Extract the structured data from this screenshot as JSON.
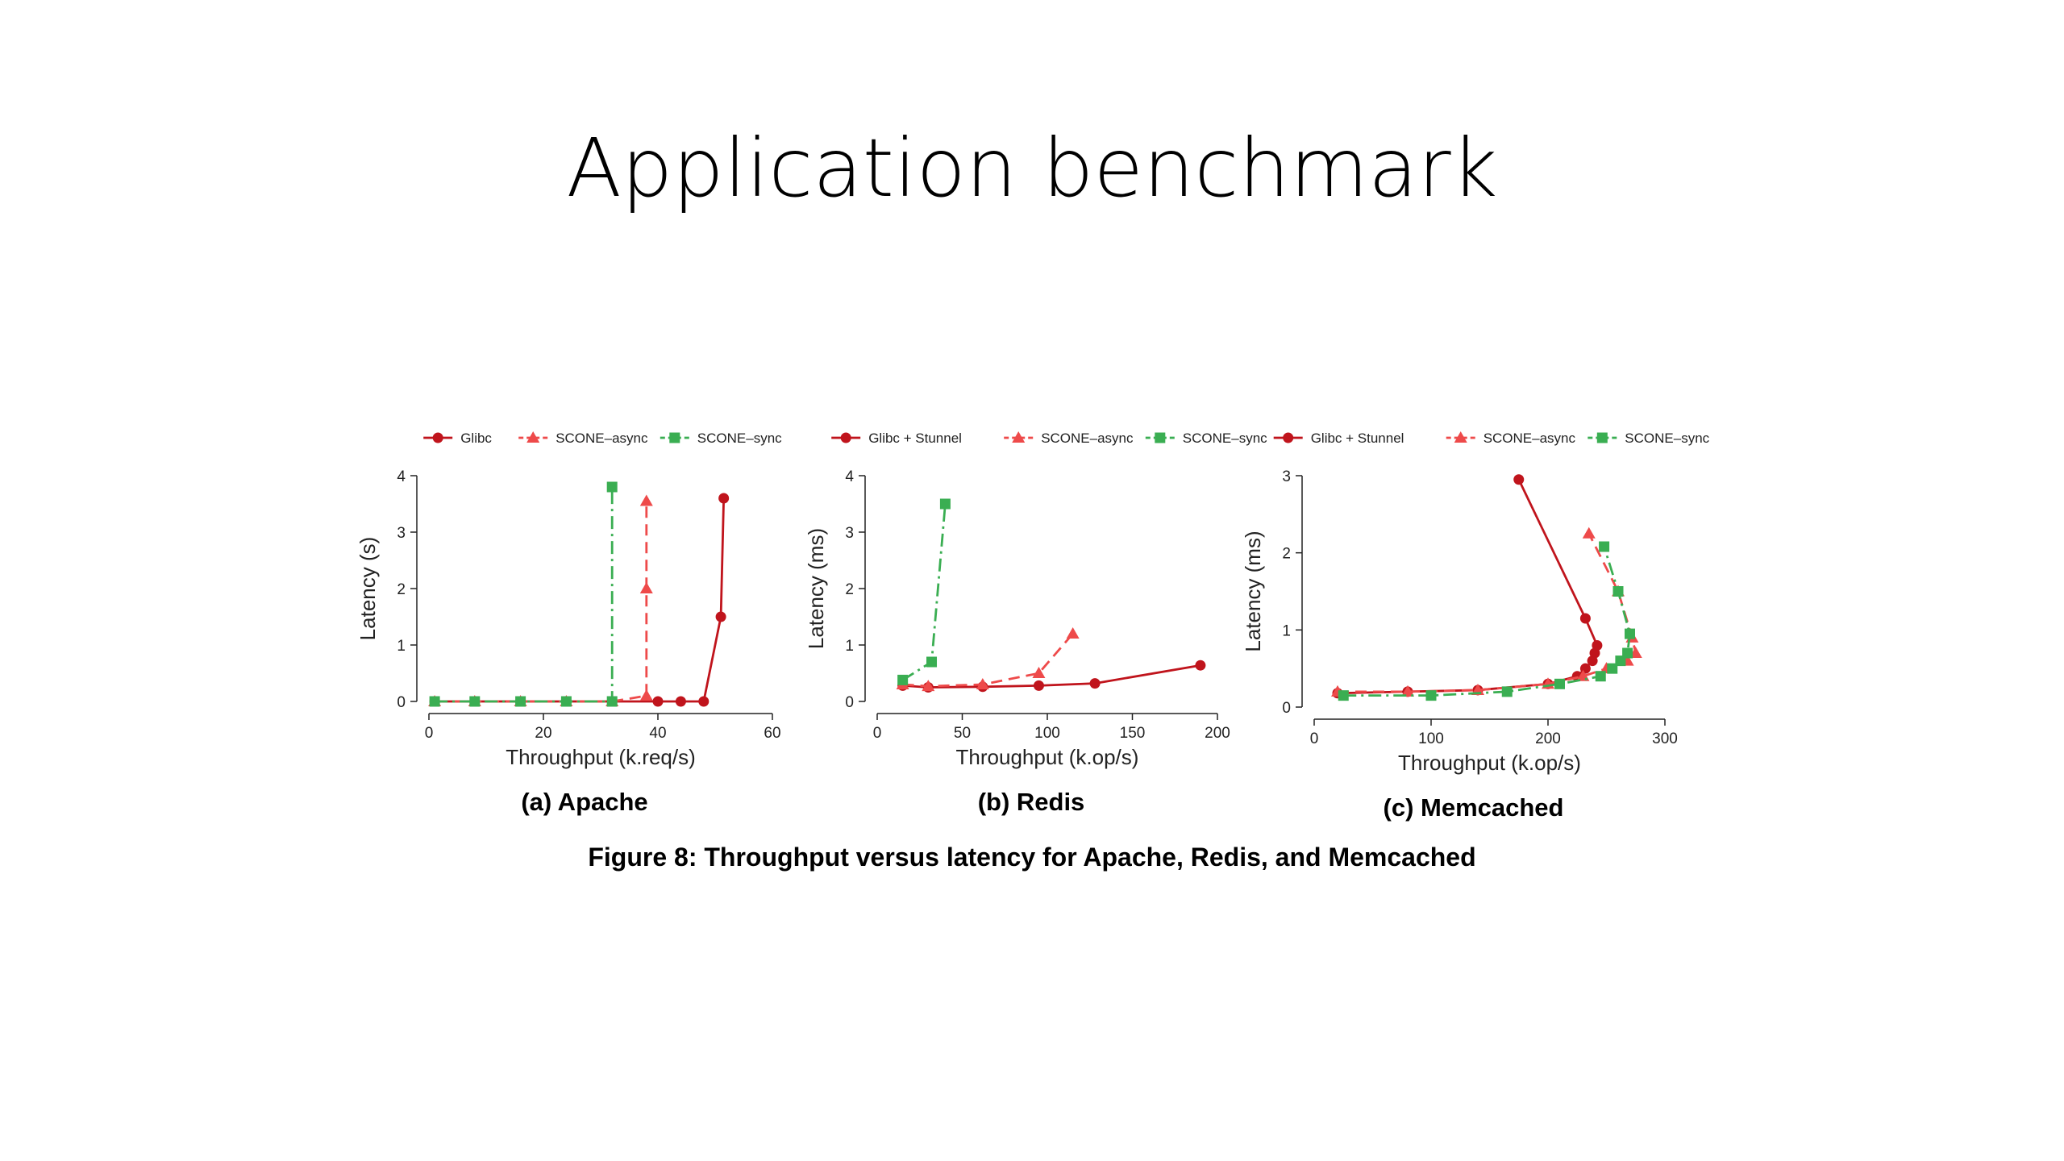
{
  "slide": {
    "title": "Application benchmark"
  },
  "caption": "Figure 8: Throughput versus latency for Apache, Redis, and Memcached",
  "colors": {
    "glibc": "#c0141c",
    "async": "#ee4a4a",
    "sync": "#3aae52"
  },
  "chart_data": [
    {
      "type": "line",
      "subtitle": "(a) Apache",
      "xlabel": "Throughput (k.req/s)",
      "ylabel": "Latency (s)",
      "xlim": [
        0,
        60
      ],
      "ylim": [
        0,
        4
      ],
      "xticks": [
        0,
        20,
        40,
        60
      ],
      "yticks": [
        0,
        1,
        2,
        3,
        4
      ],
      "legend_position": "top",
      "series": [
        {
          "name": "Glibc",
          "marker": "circle",
          "dash": "solid",
          "x": [
            1,
            8,
            16,
            24,
            32,
            40,
            44,
            48,
            51,
            51.5
          ],
          "y": [
            0,
            0,
            0,
            0,
            0,
            0,
            0,
            0,
            1.5,
            3.6
          ]
        },
        {
          "name": "SCONE–async",
          "marker": "triangle",
          "dash": "dashed",
          "x": [
            1,
            8,
            16,
            24,
            32,
            38,
            38,
            38
          ],
          "y": [
            0,
            0,
            0,
            0,
            0,
            0.1,
            2.0,
            3.55
          ]
        },
        {
          "name": "SCONE–sync",
          "marker": "square",
          "dash": "dashdot",
          "x": [
            1,
            8,
            16,
            24,
            32,
            32
          ],
          "y": [
            0,
            0,
            0,
            0,
            0,
            3.8
          ]
        }
      ]
    },
    {
      "type": "line",
      "subtitle": "(b) Redis",
      "xlabel": "Throughput (k.op/s)",
      "ylabel": "Latency (ms)",
      "xlim": [
        0,
        200
      ],
      "ylim": [
        0,
        4
      ],
      "xticks": [
        0,
        50,
        100,
        150,
        200
      ],
      "yticks": [
        0,
        1,
        2,
        3,
        4
      ],
      "legend_position": "top",
      "series": [
        {
          "name": "Glibc + Stunnel",
          "marker": "circle",
          "dash": "solid",
          "x": [
            15,
            30,
            62,
            95,
            128,
            190
          ],
          "y": [
            0.28,
            0.25,
            0.26,
            0.28,
            0.32,
            0.64
          ]
        },
        {
          "name": "SCONE–async",
          "marker": "triangle",
          "dash": "dashed",
          "x": [
            15,
            30,
            62,
            95,
            115
          ],
          "y": [
            0.3,
            0.27,
            0.3,
            0.5,
            1.2
          ]
        },
        {
          "name": "SCONE–sync",
          "marker": "square",
          "dash": "dashdot",
          "x": [
            15,
            32,
            40
          ],
          "y": [
            0.38,
            0.7,
            3.5
          ]
        }
      ]
    },
    {
      "type": "line",
      "subtitle": "(c) Memcached",
      "xlabel": "Throughput (k.op/s)",
      "ylabel": "Latency (ms)",
      "xlim": [
        0,
        300
      ],
      "ylim": [
        0,
        3
      ],
      "xticks": [
        0,
        100,
        200,
        300
      ],
      "yticks": [
        0,
        1,
        2,
        3
      ],
      "legend_position": "top",
      "series": [
        {
          "name": "Glibc + Stunnel",
          "marker": "circle",
          "dash": "solid",
          "x": [
            20,
            80,
            140,
            200,
            225,
            232,
            238,
            240,
            242,
            232,
            175
          ],
          "y": [
            0.18,
            0.2,
            0.22,
            0.3,
            0.4,
            0.5,
            0.6,
            0.7,
            0.8,
            1.15,
            2.95
          ]
        },
        {
          "name": "SCONE–async",
          "marker": "triangle",
          "dash": "dashed",
          "x": [
            20,
            80,
            140,
            200,
            230,
            250,
            268,
            275,
            272,
            260,
            235
          ],
          "y": [
            0.2,
            0.2,
            0.22,
            0.3,
            0.4,
            0.5,
            0.6,
            0.7,
            0.9,
            1.5,
            2.25
          ]
        },
        {
          "name": "SCONE–sync",
          "marker": "square",
          "dash": "dashdot",
          "x": [
            25,
            100,
            165,
            210,
            245,
            255,
            262,
            268,
            270,
            260,
            248
          ],
          "y": [
            0.15,
            0.15,
            0.2,
            0.3,
            0.4,
            0.5,
            0.6,
            0.7,
            0.95,
            1.5,
            2.08
          ]
        }
      ]
    }
  ]
}
